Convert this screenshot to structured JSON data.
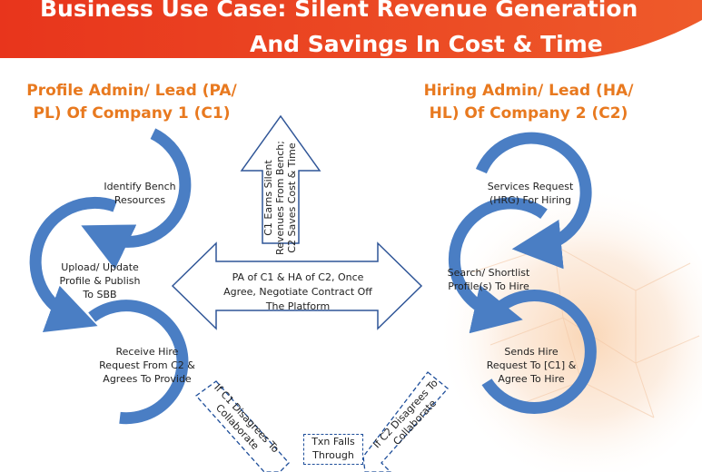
{
  "header": {
    "title_line1": "Business Use Case: Silent Revenue Generation",
    "title_line2": "And Savings In Cost & Time"
  },
  "left": {
    "title": "Profile Admin/ Lead (PA/ PL) Of Company 1 (C1)",
    "steps": [
      "Identify Bench Resources",
      "Upload/ Update Profile & Publish To SBB",
      "Receive Hire Request From C2 & Agrees To Provide"
    ]
  },
  "right": {
    "title": "Hiring Admin/ Lead (HA/ HL) Of Company 2 (C2)",
    "steps": [
      "Services Request (HRG) For Hiring",
      "Search/ Shortlist Profile(s) To Hire",
      "Sends Hire Request To [C1] & Agree To Hire"
    ]
  },
  "center": {
    "up_arrow_text": "C1 Earns Silent Revenues From Bench; C2 Saves Cost & Time",
    "double_arrow_text": "PA of C1 & HA of C2, Once Agree, Negotiate Contract Off The Platform"
  },
  "bottom": {
    "left_disagree": "If C1 Disagrees To Collaborate",
    "right_disagree": "If C2 Disagrees To Collaborate",
    "outcome": "Txn Falls Through"
  },
  "colors": {
    "header_bg": "#E8351C",
    "accent_orange": "#E8791F",
    "ring_blue": "#4A7EC4",
    "arrow_outline": "#2F5597",
    "dashed_blue": "#1E4E9A"
  }
}
